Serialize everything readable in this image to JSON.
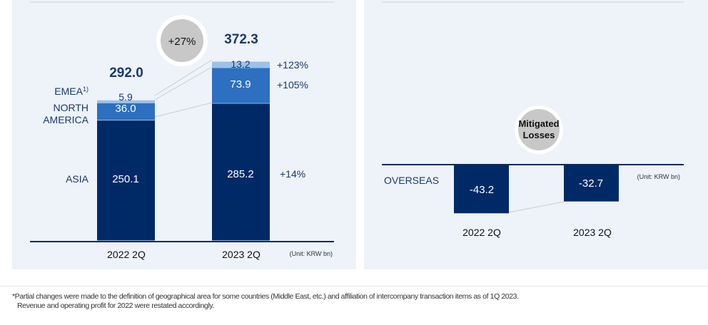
{
  "colors": {
    "asia": "#002a66",
    "north_america": "#2d6fc1",
    "emea": "#9cc2e8",
    "text_navy": "#1a3a6e",
    "axis": "#0d2b5c",
    "badge_fill": "#c8c8c8",
    "connector": "#c5cede"
  },
  "chart_data": [
    {
      "type": "bar",
      "stacked": true,
      "unit": "(Unit: KRW bn)",
      "categories": [
        "2022 2Q",
        "2023 2Q"
      ],
      "series": [
        {
          "name": "ASIA",
          "values": [
            250.1,
            285.2
          ],
          "change": "+14%"
        },
        {
          "name": "NORTH AMERICA",
          "values": [
            36.0,
            73.9
          ],
          "change": "+105%"
        },
        {
          "name": "EMEA",
          "values": [
            5.9,
            13.2
          ],
          "change": "+123%",
          "footnote_mark": "1)"
        }
      ],
      "totals": [
        292.0,
        372.3
      ],
      "total_change_badge": "+27%",
      "ylim": [
        0,
        380
      ]
    },
    {
      "type": "bar",
      "unit": "(Unit: KRW bn)",
      "categories": [
        "2022 2Q",
        "2023 2Q"
      ],
      "series": [
        {
          "name": "OVERSEAS",
          "values": [
            -43.2,
            -32.7
          ]
        }
      ],
      "badge": "Mitigated Losses",
      "ylim": [
        -70,
        0
      ]
    }
  ],
  "text": {
    "left_cat_1": "2022 2Q",
    "left_cat_2": "2023 2Q",
    "left_unit": "(Unit: KRW bn)",
    "total_1": "292.0",
    "total_2": "372.3",
    "badge_left": "+27%",
    "asia_label": "ASIA",
    "na_label_1": "NORTH",
    "na_label_2": "AMERICA",
    "emea_label": "EMEA",
    "emea_sup": "1)",
    "asia_1": "250.1",
    "asia_2": "285.2",
    "na_1": "36.0",
    "na_2": "73.9",
    "emea_1": "5.9",
    "emea_2": "13.2",
    "chg_emea": "+123%",
    "chg_na": "+105%",
    "chg_asia": "+14%",
    "right_cat_1": "2022 2Q",
    "right_cat_2": "2023 2Q",
    "right_unit": "(Unit: KRW bn)",
    "overseas_label": "OVERSEAS",
    "overseas_1": "-43.2",
    "overseas_2": "-32.7",
    "badge_right_1": "Mitigated",
    "badge_right_2": "Losses"
  },
  "notes": {
    "line1": "*Partial changes were made to the definition of geographical area for some countries (Middle East, etc.) and affiliation of intercompany transaction items as of 1Q 2023.",
    "line2": "Revenue and operating profit for 2022 were restated accordingly."
  }
}
